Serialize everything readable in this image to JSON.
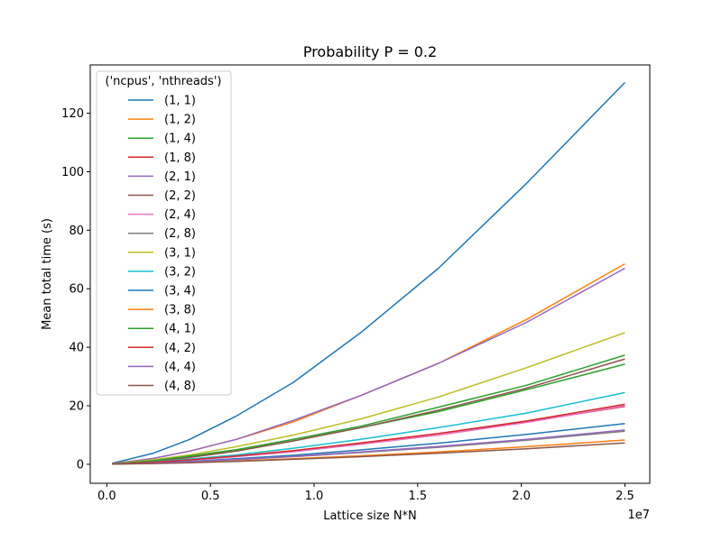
{
  "chart_data": {
    "type": "line",
    "title": "Probability P = 0.2",
    "xlabel": "Lattice size N*N",
    "ylabel": "Mean total time (s)",
    "x_offset_label": "1e7",
    "x_tick_labels": [
      "0.0",
      "0.5",
      "1.0",
      "1.5",
      "2.0",
      "2.5"
    ],
    "y_tick_labels": [
      "0",
      "20",
      "40",
      "60",
      "80",
      "100",
      "120"
    ],
    "xlim": [
      -800000,
      26200000
    ],
    "ylim": [
      -6.5,
      136.5
    ],
    "grid": false,
    "legend": {
      "title": "('ncpus', 'nthreads')",
      "placement": "upper-left"
    },
    "x": [
      250000,
      2250000,
      4000000,
      6250000,
      9000000,
      12250000,
      16000000,
      20250000,
      25000000
    ],
    "series": [
      {
        "name": "(1, 1)",
        "color": "#1f77b4",
        "values": [
          0.3,
          3.8,
          8.5,
          16.5,
          28,
          45,
          67,
          96,
          130.5
        ]
      },
      {
        "name": "(1, 2)",
        "color": "#ff7f0e",
        "values": [
          0.2,
          2.0,
          4.5,
          8.5,
          14.5,
          23.5,
          34.5,
          49.5,
          68.5
        ]
      },
      {
        "name": "(1, 4)",
        "color": "#2ca02c",
        "values": [
          0.1,
          1.1,
          2.5,
          4.5,
          8.0,
          12.5,
          18.0,
          25.5,
          34.2
        ]
      },
      {
        "name": "(1, 8)",
        "color": "#d62728",
        "values": [
          0.1,
          0.7,
          1.5,
          2.7,
          4.5,
          7.0,
          10.0,
          14.5,
          19.8
        ]
      },
      {
        "name": "(2, 1)",
        "color": "#9467bd",
        "values": [
          0.2,
          2.0,
          4.5,
          8.5,
          15.0,
          23.5,
          34.5,
          48.5,
          67.0
        ]
      },
      {
        "name": "(2, 2)",
        "color": "#8c564b",
        "values": [
          0.1,
          1.0,
          2.3,
          4.5,
          8.0,
          12.5,
          18.5,
          26.0,
          36.0
        ]
      },
      {
        "name": "(2, 4)",
        "color": "#e377c2",
        "values": [
          0.1,
          0.6,
          1.4,
          2.6,
          4.3,
          6.8,
          10.0,
          14.3,
          20.0
        ]
      },
      {
        "name": "(2, 8)",
        "color": "#7f7f7f",
        "values": [
          0.05,
          0.4,
          0.9,
          1.6,
          2.6,
          4.0,
          5.8,
          8.2,
          11.3
        ]
      },
      {
        "name": "(3, 1)",
        "color": "#bcbd22",
        "values": [
          0.1,
          1.5,
          3.2,
          6.0,
          10.0,
          15.5,
          23.0,
          33.0,
          45.0
        ]
      },
      {
        "name": "(3, 2)",
        "color": "#17becf",
        "values": [
          0.1,
          0.8,
          1.8,
          3.2,
          5.5,
          8.5,
          12.5,
          17.5,
          24.5
        ]
      },
      {
        "name": "(3, 4)",
        "color": "#1f77b4",
        "values": [
          0.05,
          0.5,
          1.0,
          1.9,
          3.1,
          4.9,
          7.2,
          10.2,
          13.9
        ]
      },
      {
        "name": "(3, 8)",
        "color": "#ff7f0e",
        "values": [
          0.05,
          0.3,
          0.6,
          1.1,
          1.9,
          2.9,
          4.2,
          6.0,
          8.3
        ]
      },
      {
        "name": "(4, 1)",
        "color": "#2ca02c",
        "values": [
          0.1,
          1.2,
          2.8,
          5.0,
          8.5,
          13.0,
          19.5,
          27.0,
          37.3
        ]
      },
      {
        "name": "(4, 2)",
        "color": "#d62728",
        "values": [
          0.1,
          0.7,
          1.5,
          2.8,
          4.7,
          7.3,
          10.5,
          14.8,
          20.5
        ]
      },
      {
        "name": "(4, 4)",
        "color": "#9467bd",
        "values": [
          0.05,
          0.4,
          0.9,
          1.6,
          2.7,
          4.2,
          6.1,
          8.5,
          11.7
        ]
      },
      {
        "name": "(4, 8)",
        "color": "#8c564b",
        "values": [
          0.05,
          0.25,
          0.5,
          1.0,
          1.7,
          2.6,
          3.8,
          5.3,
          7.3
        ]
      }
    ]
  }
}
